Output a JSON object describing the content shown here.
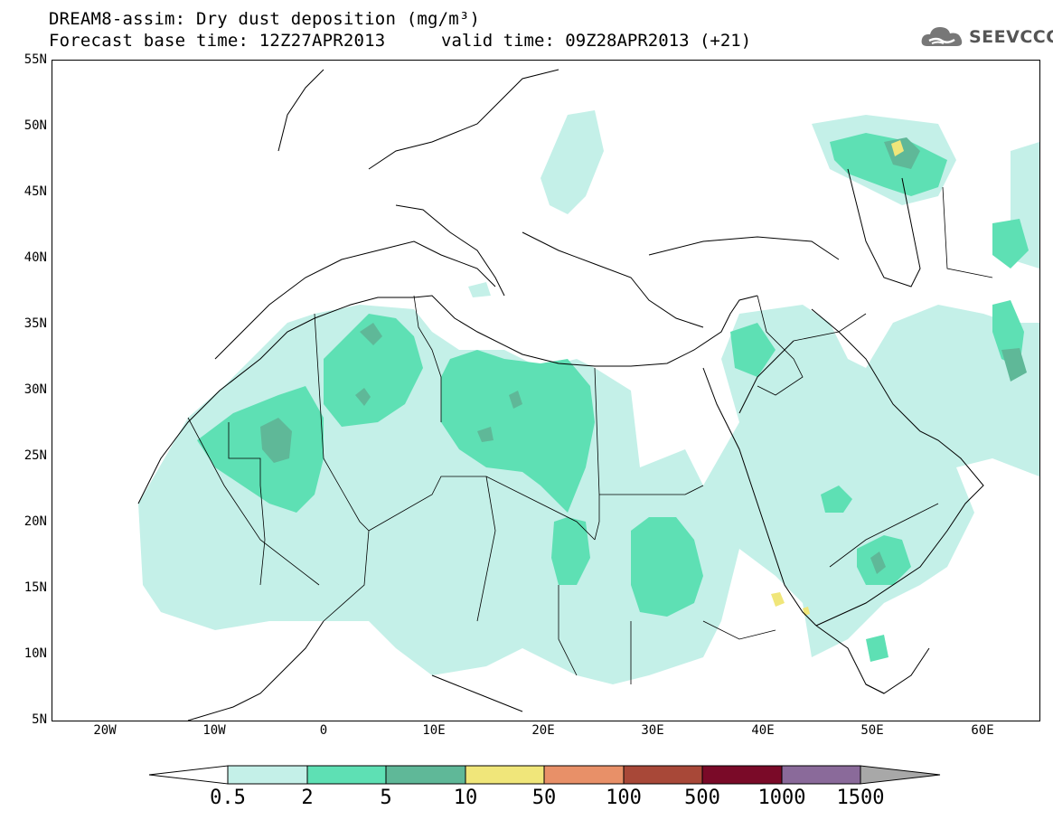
{
  "title": {
    "line1": "DREAM8-assim: Dry dust deposition (mg/m³)",
    "base_time": "Forecast base time: 12Z27APR2013",
    "valid_time": "valid time: 09Z28APR2013 (+21)"
  },
  "logo": {
    "text": "SEEVCCC",
    "icon": "cloud-icon"
  },
  "axes": {
    "lat_labels": [
      "55N",
      "50N",
      "45N",
      "40N",
      "35N",
      "30N",
      "25N",
      "20N",
      "15N",
      "10N",
      "5N"
    ],
    "lon_labels": [
      "20W",
      "10W",
      "0",
      "10E",
      "20E",
      "30E",
      "40E",
      "50E",
      "60E"
    ],
    "lat_range": [
      5,
      55
    ],
    "lon_range": [
      -25,
      65
    ]
  },
  "colorbar": {
    "levels": [
      "0.5",
      "2",
      "5",
      "10",
      "50",
      "100",
      "500",
      "1000",
      "1500"
    ],
    "colors": [
      "#c4f0e8",
      "#5ee0b4",
      "#5fb898",
      "#f0e67a",
      "#e89068",
      "#a84838",
      "#7a0a28",
      "#8a6a9a"
    ],
    "over_color": "#a8a8a8",
    "under_color": "#ffffff"
  },
  "chart_data": {
    "type": "heatmap",
    "variable": "Dry dust deposition",
    "units": "mg/m³",
    "levels": [
      0.5,
      2,
      5,
      10,
      50,
      100,
      500,
      1000,
      1500
    ],
    "regions": [
      {
        "level_min": 2,
        "level_max": 5,
        "lat": 26,
        "lon": -4
      },
      {
        "level_min": 2,
        "level_max": 5,
        "lat": 30,
        "lon": 22
      },
      {
        "level_min": 2,
        "level_max": 5,
        "lat": 17,
        "lon": 31
      },
      {
        "level_min": 10,
        "level_max": 50,
        "lat": 47.5,
        "lon": 51.5
      },
      {
        "level_min": 10,
        "level_max": 50,
        "lat": 14,
        "lon": 41.5
      }
    ]
  }
}
